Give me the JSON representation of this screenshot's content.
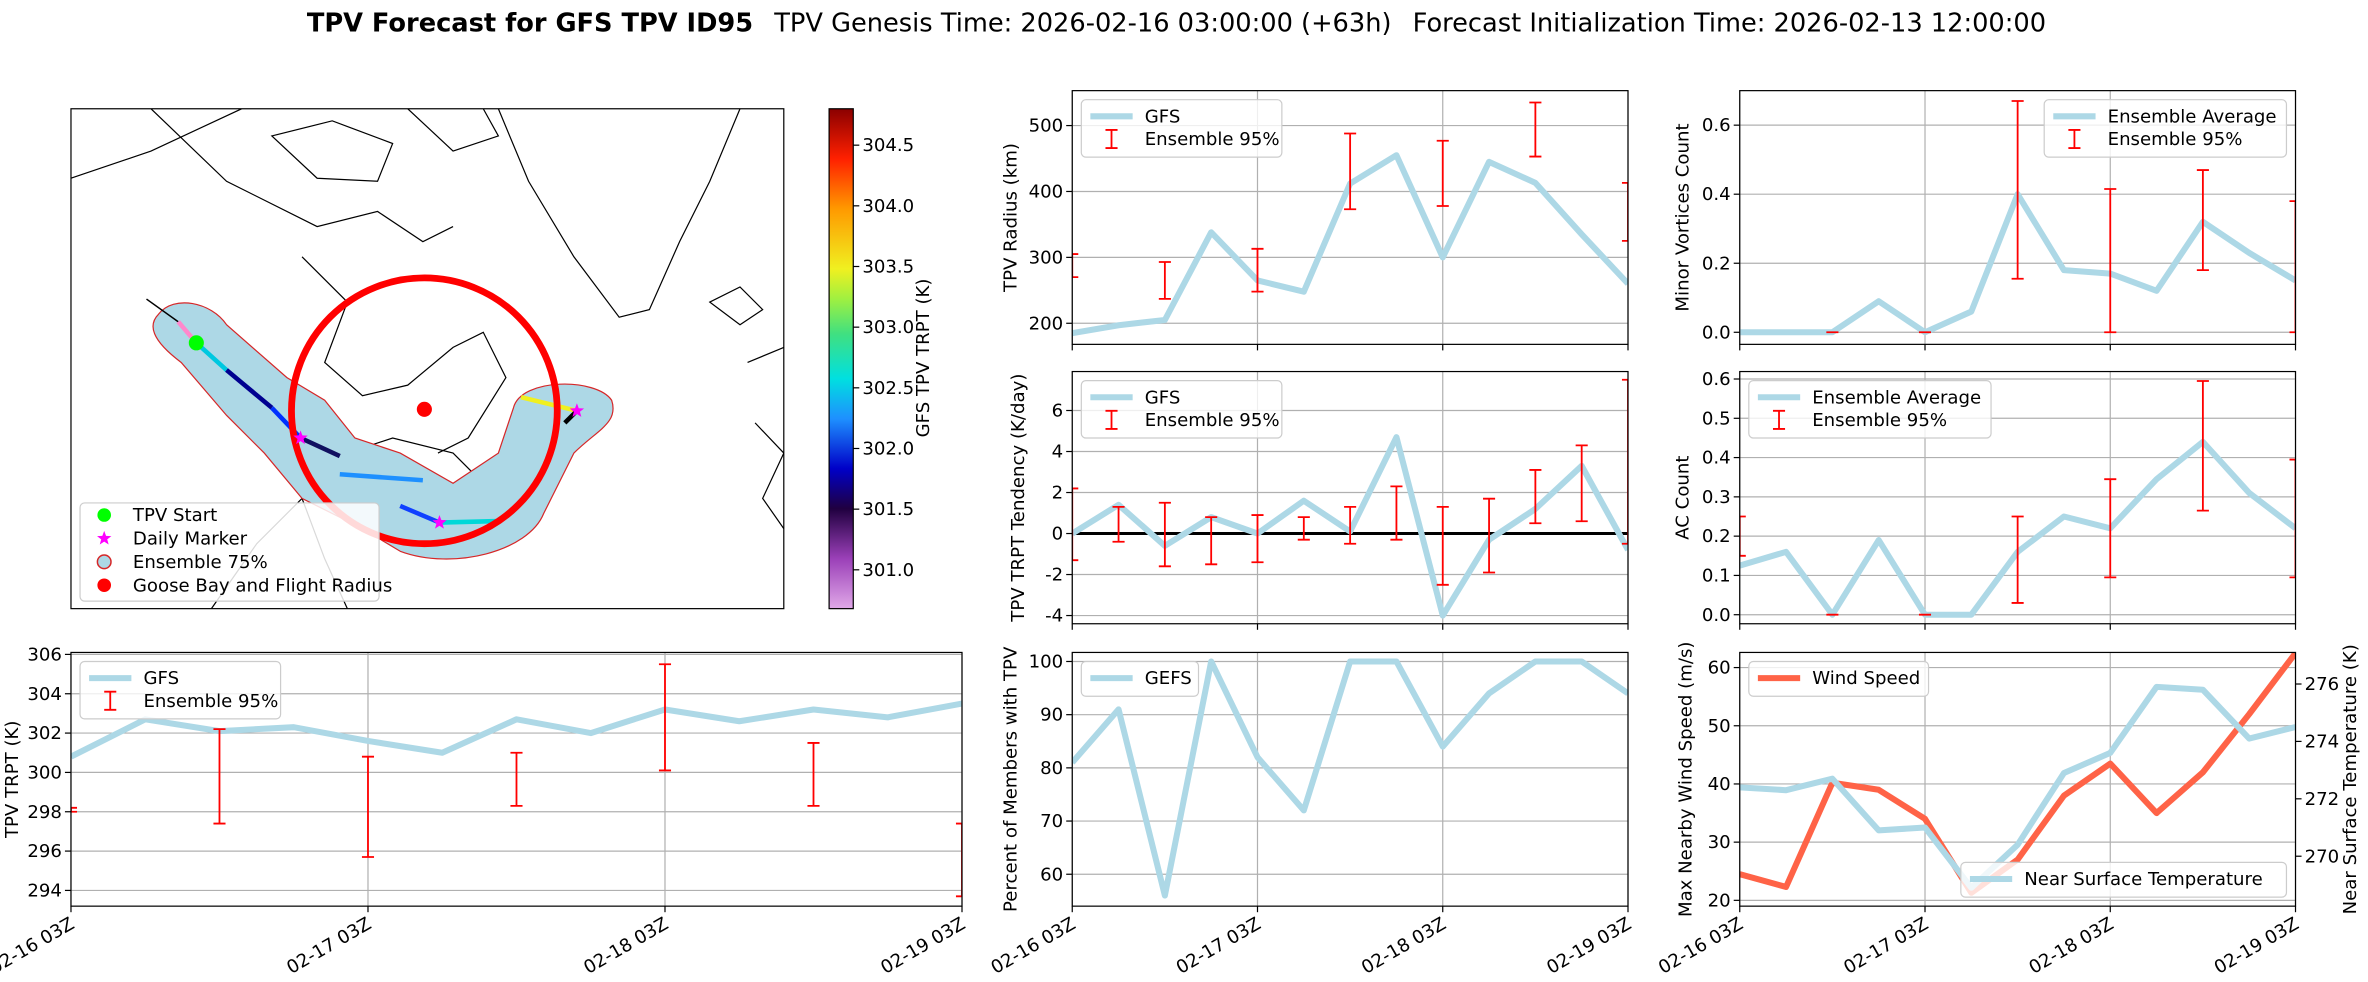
{
  "title_parts": [
    "TPV Forecast for GFS TPV ID95",
    "TPV Genesis Time: 2026-02-16 03:00:00 (+63h)",
    "Forecast Initialization Time: 2026-02-13 12:00:00"
  ],
  "chart_data": [
    {
      "type": "map",
      "legend_items": [
        {
          "label": "TPV Start",
          "color": "#00ff00",
          "marker": "circle"
        },
        {
          "label": "Daily Marker",
          "color": "#ff00ff",
          "marker": "star"
        },
        {
          "label": "Ensemble 75%",
          "color": "#add8e6",
          "edge": "#d62728",
          "marker": "circle"
        },
        {
          "label": "Goose Bay and Flight Radius",
          "color": "#ff0000",
          "marker": "circle"
        }
      ],
      "colorbar_label": "GFS TPV TRPT (K)",
      "clim": [
        300.68,
        304.8
      ],
      "cticks": [
        {
          "value": 301,
          "label": "301.0"
        },
        301.5,
        {
          "value": 302,
          "label": "302.0"
        },
        302.5,
        {
          "value": 303,
          "label": "303.0"
        },
        303.5,
        {
          "value": 304,
          "label": "304.0"
        },
        304.5
      ]
    },
    {
      "type": "line",
      "ylabel": "TPV TRPT (K)",
      "categories": [
        "02-16 03Z",
        null,
        null,
        null,
        "02-17 03Z",
        null,
        null,
        null,
        "02-18 03Z",
        null,
        null,
        null,
        "02-19 03Z"
      ],
      "series": [
        {
          "name": "GFS",
          "color": "#add8e6",
          "values": [
            300.8,
            302.7,
            302.1,
            302.3,
            301.6,
            301.0,
            302.7,
            302.0,
            303.2,
            302.6,
            303.2,
            302.8,
            303.5
          ]
        }
      ],
      "errorbars": {
        "name": "Ensemble 95%",
        "color": "#ff0000",
        "low": [
          298.0,
          null,
          297.4,
          null,
          295.7,
          null,
          298.3,
          null,
          300.1,
          null,
          298.3,
          null,
          293.7
        ],
        "high": [
          298.2,
          null,
          302.2,
          null,
          300.8,
          null,
          301.0,
          null,
          305.5,
          null,
          301.5,
          null,
          297.4
        ]
      },
      "ylim": [
        293.2,
        306.1
      ],
      "yticks": [
        294,
        296,
        298,
        300,
        302,
        304,
        306
      ],
      "grid": true,
      "legend": "upper left"
    },
    {
      "type": "line",
      "ylabel": "TPV Radius (km)",
      "sharex": 4,
      "series": [
        {
          "name": "GFS",
          "color": "#add8e6",
          "values": [
            185,
            197,
            205,
            338,
            265,
            248,
            412,
            455,
            300,
            445,
            413,
            335,
            260
          ]
        }
      ],
      "errorbars": {
        "name": "Ensemble 95%",
        "color": "#ff0000",
        "low": [
          270,
          null,
          237,
          null,
          248,
          null,
          373,
          null,
          378,
          null,
          453,
          null,
          325
        ],
        "high": [
          305,
          null,
          293,
          null,
          313,
          null,
          488,
          null,
          477,
          null,
          535,
          null,
          413
        ]
      },
      "ylim": [
        168,
        553
      ],
      "yticks": [
        200,
        300,
        400,
        500
      ],
      "grid": true,
      "legend": "upper left"
    },
    {
      "type": "line",
      "ylabel": "TPV TRPT Tendency (K/day)",
      "sharex": 4,
      "series": [
        {
          "name": "GFS",
          "color": "#add8e6",
          "values": [
            0.0,
            1.4,
            -0.6,
            0.8,
            0.0,
            1.6,
            0.1,
            4.7,
            -4.0,
            -0.3,
            1.2,
            3.3,
            -0.8
          ]
        }
      ],
      "errorbars": {
        "name": "Ensemble 95%",
        "color": "#ff0000",
        "low": [
          -1.3,
          -0.4,
          -1.6,
          -1.5,
          -1.4,
          -0.3,
          -0.5,
          -0.3,
          -2.5,
          -1.9,
          0.5,
          0.6,
          -0.5
        ],
        "high": [
          2.2,
          1.3,
          1.5,
          0.8,
          0.9,
          0.8,
          1.3,
          2.3,
          1.3,
          1.7,
          3.1,
          4.3,
          7.5
        ]
      },
      "hline": 0,
      "ylim": [
        -4.4,
        7.9
      ],
      "yticks": [
        -4,
        -2,
        0,
        2,
        4,
        6
      ],
      "grid": true,
      "legend": "upper left"
    },
    {
      "type": "line",
      "ylabel": "Percent of Members with TPV",
      "categories": [
        "02-16 03Z",
        null,
        null,
        null,
        "02-17 03Z",
        null,
        null,
        null,
        "02-18 03Z",
        null,
        null,
        null,
        "02-19 03Z"
      ],
      "series": [
        {
          "name": "GEFS",
          "color": "#add8e6",
          "values": [
            81,
            91,
            56,
            100,
            82,
            72,
            100,
            100,
            84,
            94,
            100,
            100,
            94
          ]
        }
      ],
      "ylim": [
        54,
        101.7
      ],
      "yticks": [
        60,
        70,
        80,
        90,
        100
      ],
      "grid": true,
      "legend": "upper left"
    },
    {
      "type": "line",
      "ylabel": "Minor Vortices Count",
      "sharex": 7,
      "series": [
        {
          "name": "Ensemble Average",
          "color": "#add8e6",
          "values": [
            0,
            0,
            0,
            0.09,
            0,
            0.06,
            0.4,
            0.18,
            0.17,
            0.12,
            0.32,
            0.23,
            0.15
          ]
        }
      ],
      "errorbars": {
        "name": "Ensemble 95%",
        "color": "#ff0000",
        "low": [
          null,
          null,
          0,
          null,
          0,
          null,
          0.155,
          null,
          0,
          null,
          0.18,
          null,
          0
        ],
        "high": [
          null,
          null,
          0,
          null,
          0,
          null,
          0.67,
          null,
          0.415,
          null,
          0.47,
          null,
          0.38
        ]
      },
      "ylim": [
        -0.035,
        0.7
      ],
      "yticks": [
        {
          "value": 0,
          "label": "0.0"
        },
        0.2,
        0.4,
        0.6
      ],
      "grid": true,
      "legend": "upper right"
    },
    {
      "type": "line",
      "ylabel": "AC Count",
      "sharex": 7,
      "series": [
        {
          "name": "Ensemble Average",
          "color": "#add8e6",
          "values": [
            0.125,
            0.16,
            0,
            0.19,
            0,
            0,
            0.16,
            0.25,
            0.22,
            0.345,
            0.44,
            0.31,
            0.22
          ]
        }
      ],
      "errorbars": {
        "name": "Ensemble 95%",
        "color": "#ff0000",
        "low": [
          0.15,
          null,
          0,
          null,
          0,
          null,
          0.03,
          null,
          0.095,
          null,
          0.265,
          null,
          0.095
        ],
        "high": [
          0.25,
          null,
          0,
          null,
          0,
          null,
          0.25,
          null,
          0.345,
          null,
          0.595,
          null,
          0.395
        ]
      },
      "ylim": [
        -0.023,
        0.619
      ],
      "yticks": [
        {
          "value": 0,
          "label": "0.0"
        },
        0.1,
        0.2,
        0.3,
        0.4,
        0.5,
        0.6
      ],
      "grid": true,
      "legend": "upper left"
    },
    {
      "type": "line",
      "ylabel": "Max Nearby Wind Speed (m/s)",
      "ylabel_color": "#ff6347",
      "y2label": "Near Surface Temperature (K)",
      "y2label_color": "#4169e1",
      "categories": [
        "02-16 03Z",
        null,
        null,
        null,
        "02-17 03Z",
        null,
        null,
        null,
        "02-18 03Z",
        null,
        null,
        null,
        "02-19 03Z"
      ],
      "series": [
        {
          "name": "Wind Speed",
          "color": "#ff6347",
          "legend": "upper left",
          "values": [
            24.5,
            22.3,
            40.2,
            39,
            34,
            21.3,
            27,
            38,
            43.5,
            35,
            42,
            52,
            62.5
          ]
        },
        {
          "name": "Near Surface Temperature",
          "color": "#add8e6",
          "axis": "y2",
          "legend": "lower right",
          "values": [
            272.4,
            272.3,
            272.7,
            270.9,
            271.0,
            268.9,
            270.4,
            272.9,
            273.6,
            275.9,
            275.8,
            274.1,
            274.5
          ]
        }
      ],
      "ylim": [
        19.0,
        62.6
      ],
      "yticks": [
        20,
        30,
        40,
        50,
        60
      ],
      "y2lim": [
        268.26,
        277.1
      ],
      "y2ticks": [
        270,
        272,
        274,
        276
      ],
      "grid": true
    }
  ]
}
